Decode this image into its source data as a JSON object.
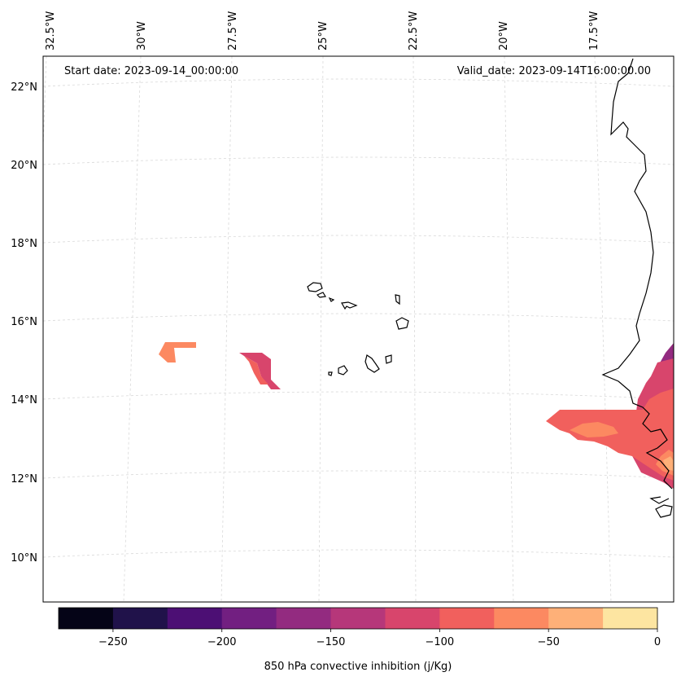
{
  "chart_data": {
    "type": "filled-contour map",
    "projection": "Lambert conformal",
    "start_label": "Start date: 2023-09-14_00:00:00",
    "valid_label": "Valid_date: 2023-09-14T16:00:00.00",
    "longitude_labels": [
      "32.5°W",
      "30°W",
      "27.5°W",
      "25°W",
      "22.5°W",
      "20°W",
      "17.5°W"
    ],
    "latitude_labels": [
      "22°N",
      "20°N",
      "18°N",
      "16°N",
      "14°N",
      "12°N",
      "10°N"
    ],
    "gridlines": true,
    "colorbar": {
      "label": "850 hPa convective inhibition (j/Kg)",
      "levels": [
        -275,
        -250,
        -225,
        -200,
        -175,
        -150,
        -125,
        -100,
        -75,
        -50,
        -25,
        0
      ],
      "tick_labels": [
        "−250",
        "−200",
        "−150",
        "−100",
        "−50",
        "0"
      ],
      "colors": [
        "#050417",
        "#20124a",
        "#4c0f74",
        "#721f81",
        "#932b80",
        "#b6377a",
        "#d8456c",
        "#f1605d",
        "#fc8961",
        "#feb078",
        "#fde5a1"
      ]
    },
    "regions": [
      {
        "name": "isolated cell west",
        "value_range": [
          -75,
          -50
        ]
      },
      {
        "name": "isolated cell central",
        "value_range": [
          -125,
          -100
        ]
      },
      {
        "name": "Senegal coastal field",
        "value_range": [
          -150,
          -25
        ]
      }
    ],
    "colors": {
      "background": "#ffffff",
      "coastline": "#000000",
      "grid": "#d9d9d9"
    }
  }
}
